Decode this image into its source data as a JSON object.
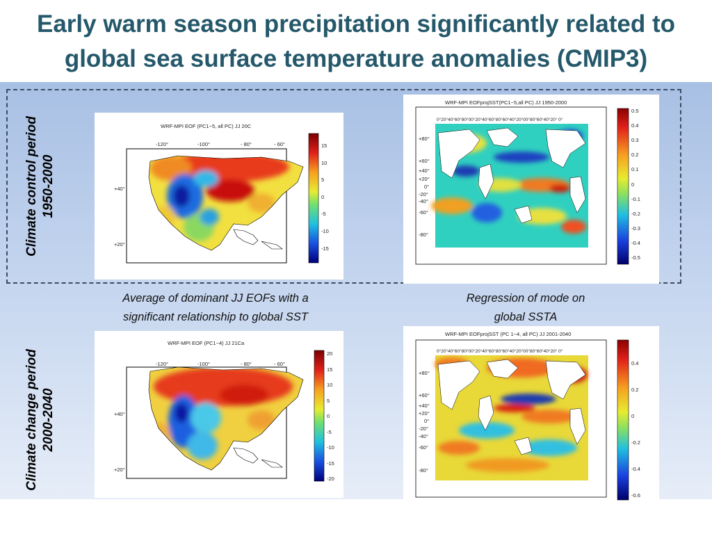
{
  "slide": {
    "title_line1": "Early warm season precipitation significantly related to",
    "title_line2": "global sea surface temperature anomalies (CMIP3)",
    "label_control_line1": "Climate control period",
    "label_control_line2": "1950-2000",
    "label_change_line1": "Climate change period",
    "label_change_line2": "2000-2040",
    "caption_left_line1": "Average of dominant JJ EOFs with a",
    "caption_left_line2": "significant relationship to global SST",
    "caption_right_line1": "Regression of mode on",
    "caption_right_line2": "global SSTA"
  },
  "panels": {
    "p1": {
      "title": "WRF-MPI EOF (PC1~5, all PC) JJ 20C",
      "lon_ticks": [
        "-120°",
        "-100°",
        "- 80°",
        "- 60°"
      ],
      "lat_ticks": [
        "+40°",
        "+20°"
      ],
      "colorbar_ticks": [
        "15",
        "10",
        "5",
        "0",
        "-5",
        "-10",
        "-15"
      ]
    },
    "p2": {
      "title": "WRF-MPI EOFprojSST(PC1~5,all PC) JJ 1950-2000",
      "lon_ticks": "0°20°40°60°80°00°20°40°60°80°60°40°20°00°80°60°40°20° 0°",
      "lat_ticks": [
        "+80°",
        "+60°",
        "+40°",
        "+20°",
        "0°",
        "-20°",
        "-40°",
        "-60°",
        "-80°"
      ],
      "colorbar_ticks": [
        "0.5",
        "0.4",
        "0.3",
        "0.2",
        "0.1",
        "0",
        "-0.1",
        "-0.2",
        "-0.3",
        "-0.4",
        "-0.5"
      ]
    },
    "p3": {
      "title": "WRF-MPI EOF (PC1~4) JJ 21Ca",
      "lon_ticks": [
        "-120°",
        "-100°",
        "- 80°",
        "- 60°"
      ],
      "lat_ticks": [
        "+40°",
        "+20°"
      ],
      "colorbar_ticks": [
        "20",
        "15",
        "10",
        "5",
        "0",
        "-5",
        "-10",
        "-15",
        "-20"
      ]
    },
    "p4": {
      "title": "WRF-MPI EOFprojSST (PC 1~4, all PC) JJ 2001-2040",
      "lon_ticks": "0°20°40°60°80°00°20°40°60°80°60°40°20°00°80°60°40°20° 0°",
      "lat_ticks": [
        "+80°",
        "+60°",
        "+40°",
        "+20°",
        "0°",
        "-20°",
        "-40°",
        "-60°",
        "-80°"
      ],
      "colorbar_ticks": [
        "0.4",
        "0.2",
        "0",
        "-0.2",
        "-0.4",
        "-0.6"
      ]
    }
  },
  "colors": {
    "title": "#24586a",
    "band_top": "#a8c0e4",
    "dash_border": "#3b4b63"
  }
}
